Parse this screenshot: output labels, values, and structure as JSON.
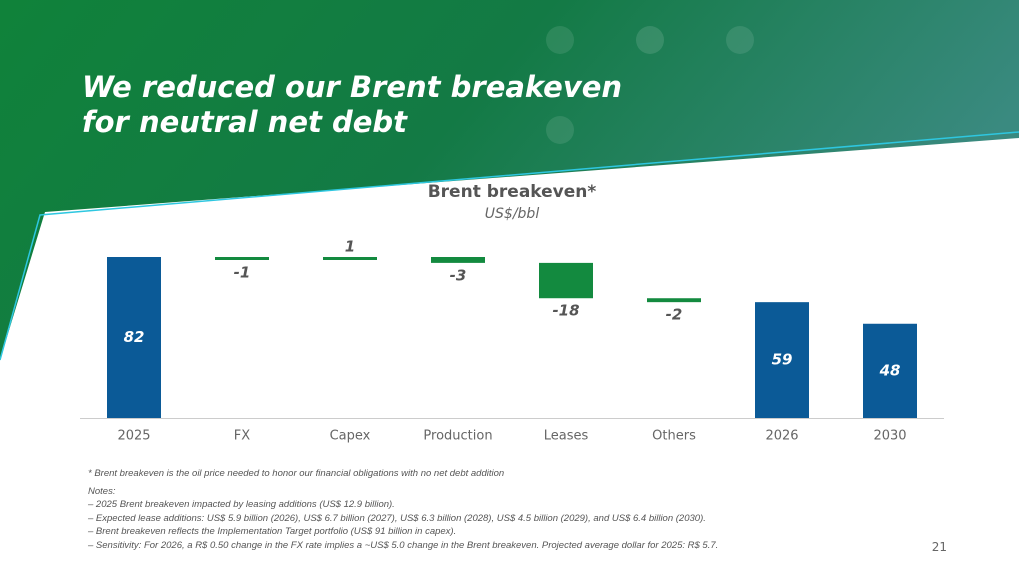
{
  "header": {
    "title_lines": [
      "We reduced our Brent breakeven",
      "for neutral net debt"
    ]
  },
  "chart_data": {
    "type": "waterfall",
    "title": "Brent breakeven*",
    "subtitle": "US$/bbl",
    "categories": [
      "2025",
      "FX",
      "Capex",
      "Production",
      "Leases",
      "Others",
      "2026",
      "2030"
    ],
    "values": [
      82,
      -1,
      1,
      -3,
      -18,
      -2,
      59,
      48
    ],
    "is_total": [
      true,
      false,
      false,
      false,
      false,
      false,
      true,
      true
    ],
    "total_color": "#0b5a97",
    "change_color": "#138a3f"
  },
  "footer": {
    "footnote": "* Brent breakeven is the oil price needed to honor our financial obligations with no net debt addition",
    "notes_heading": "Notes:",
    "notes": [
      "– 2025 Brent breakeven impacted by leasing additions (US$ 12.9 billion).",
      "– Expected lease additions: US$ 5.9 billion (2026), US$ 6.7 billion (2027), US$ 6.3 billion (2028), US$ 4.5 billion (2029), and US$ 6.4 billion (2030).",
      "– Brent breakeven reflects the Implementation Target portfolio (US$ 91 billion in capex).",
      "– Sensitivity: For 2026, a R$ 0.50 change in the FX rate implies a ~US$ 5.0 change in the Brent breakeven. Projected average dollar for 2025: R$ 5.7."
    ],
    "page_number": "21"
  }
}
